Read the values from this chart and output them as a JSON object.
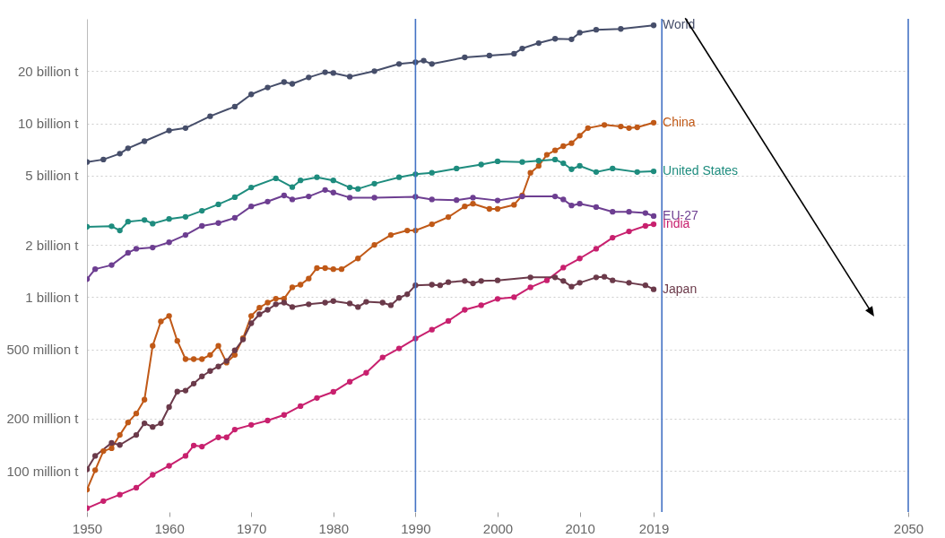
{
  "chart_data": {
    "type": "line",
    "log": "y",
    "grid": "y",
    "legend": false,
    "marker": "circle",
    "line_style": "solid",
    "xlim": [
      1950,
      2050
    ],
    "xticks": [
      1950,
      1960,
      1970,
      1980,
      1990,
      2000,
      2010,
      2019,
      2050
    ],
    "ylim": [
      58000000.0,
      40000000000.0
    ],
    "yticks": [
      {
        "value": 100000000.0,
        "label": "100 million t"
      },
      {
        "value": 200000000.0,
        "label": "200 million t"
      },
      {
        "value": 500000000.0,
        "label": "500 million t"
      },
      {
        "value": 1000000000.0,
        "label": "1 billion t"
      },
      {
        "value": 2000000000.0,
        "label": "2 billion t"
      },
      {
        "value": 5000000000.0,
        "label": "5 billion t"
      },
      {
        "value": 10000000000.0,
        "label": "10 billion t"
      },
      {
        "value": 20000000000.0,
        "label": "20 billion t"
      }
    ],
    "ref_lines": [
      {
        "axis": "x",
        "value": 1990,
        "color": "#4472c4"
      },
      {
        "axis": "x",
        "value": 2020,
        "color": "#4472c4"
      },
      {
        "axis": "x",
        "value": 2050,
        "color": "#4472c4"
      }
    ],
    "series": [
      {
        "name": "World",
        "color": "#464e6a",
        "x": [
          1950,
          1952,
          1954,
          1955,
          1957,
          1960,
          1962,
          1965,
          1968,
          1970,
          1972,
          1974,
          1975,
          1977,
          1979,
          1980,
          1982,
          1985,
          1988,
          1990,
          1991,
          1992,
          1996,
          1999,
          2002,
          2003,
          2005,
          2007,
          2009,
          2010,
          2012,
          2015,
          2019
        ],
        "values": [
          6000000000.0,
          6200000000.0,
          6700000000.0,
          7200000000.0,
          7900000000.0,
          9100000000.0,
          9400000000.0,
          11000000000.0,
          12500000000.0,
          14700000000.0,
          16100000000.0,
          17300000000.0,
          16900000000.0,
          18400000000.0,
          19700000000.0,
          19500000000.0,
          18600000000.0,
          20000000000.0,
          22000000000.0,
          22500000000.0,
          23000000000.0,
          22000000000.0,
          24000000000.0,
          24600000000.0,
          25200000000.0,
          27000000000.0,
          29000000000.0,
          30700000000.0,
          30500000000.0,
          33300000000.0,
          34600000000.0,
          35000000000.0,
          36700000000.0
        ]
      },
      {
        "name": "China",
        "color": "#c05917",
        "x": [
          1950,
          1951,
          1952,
          1953,
          1954,
          1955,
          1956,
          1957,
          1958,
          1959,
          1960,
          1961,
          1962,
          1963,
          1964,
          1965,
          1966,
          1967,
          1968,
          1969,
          1970,
          1971,
          1972,
          1973,
          1974,
          1975,
          1976,
          1977,
          1978,
          1979,
          1980,
          1981,
          1983,
          1985,
          1987,
          1989,
          1990,
          1992,
          1994,
          1996,
          1997,
          1999,
          2000,
          2002,
          2003,
          2004,
          2005,
          2006,
          2007,
          2008,
          2009,
          2010,
          2011,
          2013,
          2015,
          2016,
          2017,
          2019
        ],
        "values": [
          78000000.0,
          101000000.0,
          130000000.0,
          135000000.0,
          161000000.0,
          190000000.0,
          214000000.0,
          257000000.0,
          525000000.0,
          725000000.0,
          780000000.0,
          560000000.0,
          440000000.0,
          440000000.0,
          440000000.0,
          465000000.0,
          525000000.0,
          420000000.0,
          465000000.0,
          580000000.0,
          780000000.0,
          870000000.0,
          930000000.0,
          980000000.0,
          980000000.0,
          1140000000.0,
          1180000000.0,
          1280000000.0,
          1470000000.0,
          1470000000.0,
          1450000000.0,
          1450000000.0,
          1670000000.0,
          2000000000.0,
          2280000000.0,
          2420000000.0,
          2420000000.0,
          2630000000.0,
          2890000000.0,
          3330000000.0,
          3450000000.0,
          3220000000.0,
          3220000000.0,
          3400000000.0,
          3850000000.0,
          5200000000.0,
          5700000000.0,
          6600000000.0,
          7000000000.0,
          7400000000.0,
          7700000000.0,
          8500000000.0,
          9400000000.0,
          9800000000.0,
          9600000000.0,
          9400000000.0,
          9500000000.0,
          10100000000.0
        ]
      },
      {
        "name": "United States",
        "color": "#1e8c7e",
        "x": [
          1950,
          1953,
          1954,
          1955,
          1957,
          1958,
          1960,
          1962,
          1964,
          1966,
          1968,
          1970,
          1973,
          1975,
          1976,
          1978,
          1980,
          1982,
          1983,
          1985,
          1988,
          1990,
          1992,
          1995,
          1998,
          2000,
          2003,
          2005,
          2007,
          2008,
          2009,
          2010,
          2012,
          2014,
          2017,
          2019
        ],
        "values": [
          2540000000.0,
          2560000000.0,
          2420000000.0,
          2720000000.0,
          2780000000.0,
          2650000000.0,
          2820000000.0,
          2900000000.0,
          3140000000.0,
          3420000000.0,
          3760000000.0,
          4280000000.0,
          4830000000.0,
          4300000000.0,
          4700000000.0,
          4900000000.0,
          4700000000.0,
          4280000000.0,
          4200000000.0,
          4500000000.0,
          4900000000.0,
          5100000000.0,
          5200000000.0,
          5500000000.0,
          5800000000.0,
          6050000000.0,
          6000000000.0,
          6100000000.0,
          6200000000.0,
          5900000000.0,
          5450000000.0,
          5700000000.0,
          5250000000.0,
          5500000000.0,
          5250000000.0,
          5300000000.0
        ]
      },
      {
        "name": "EU-27",
        "color": "#6d3e91",
        "x": [
          1950,
          1951,
          1953,
          1955,
          1956,
          1958,
          1960,
          1962,
          1964,
          1966,
          1968,
          1970,
          1972,
          1974,
          1975,
          1977,
          1979,
          1980,
          1982,
          1985,
          1990,
          1992,
          1995,
          1997,
          2000,
          2003,
          2007,
          2008,
          2009,
          2010,
          2012,
          2014,
          2016,
          2018,
          2019
        ],
        "values": [
          1270000000.0,
          1450000000.0,
          1530000000.0,
          1800000000.0,
          1900000000.0,
          1930000000.0,
          2070000000.0,
          2280000000.0,
          2570000000.0,
          2670000000.0,
          2860000000.0,
          3330000000.0,
          3550000000.0,
          3850000000.0,
          3650000000.0,
          3800000000.0,
          4140000000.0,
          4000000000.0,
          3740000000.0,
          3740000000.0,
          3780000000.0,
          3650000000.0,
          3620000000.0,
          3740000000.0,
          3600000000.0,
          3800000000.0,
          3800000000.0,
          3650000000.0,
          3370000000.0,
          3450000000.0,
          3300000000.0,
          3100000000.0,
          3100000000.0,
          3050000000.0,
          2930000000.0
        ]
      },
      {
        "name": "India",
        "color": "#c8206e",
        "x": [
          1950,
          1952,
          1954,
          1956,
          1958,
          1960,
          1962,
          1963,
          1964,
          1966,
          1967,
          1968,
          1970,
          1972,
          1974,
          1976,
          1978,
          1980,
          1982,
          1984,
          1986,
          1988,
          1990,
          1992,
          1994,
          1996,
          1998,
          2000,
          2002,
          2004,
          2006,
          2008,
          2010,
          2012,
          2014,
          2016,
          2018,
          2019
        ],
        "values": [
          61000000.0,
          67000000.0,
          73000000.0,
          80000000.0,
          95000000.0,
          107000000.0,
          122000000.0,
          140000000.0,
          138000000.0,
          156000000.0,
          156000000.0,
          173000000.0,
          184000000.0,
          195000000.0,
          210000000.0,
          236000000.0,
          263000000.0,
          285000000.0,
          326000000.0,
          367000000.0,
          450000000.0,
          507000000.0,
          578000000.0,
          650000000.0,
          730000000.0,
          846000000.0,
          898000000.0,
          977000000.0,
          1000000000.0,
          1140000000.0,
          1250000000.0,
          1480000000.0,
          1670000000.0,
          1900000000.0,
          2200000000.0,
          2390000000.0,
          2570000000.0,
          2630000000.0
        ]
      },
      {
        "name": "Japan",
        "color": "#6b3a4a",
        "x": [
          1950,
          1951,
          1953,
          1954,
          1956,
          1957,
          1958,
          1959,
          1960,
          1961,
          1962,
          1963,
          1964,
          1965,
          1966,
          1967,
          1968,
          1969,
          1970,
          1971,
          1972,
          1973,
          1974,
          1975,
          1977,
          1979,
          1980,
          1982,
          1983,
          1984,
          1986,
          1987,
          1988,
          1989,
          1990,
          1992,
          1993,
          1994,
          1996,
          1997,
          1998,
          2000,
          2004,
          2007,
          2008,
          2009,
          2010,
          2012,
          2013,
          2014,
          2016,
          2018,
          2019
        ],
        "values": [
          102000000.0,
          122000000.0,
          145000000.0,
          141000000.0,
          161000000.0,
          188000000.0,
          179000000.0,
          188000000.0,
          233000000.0,
          286000000.0,
          290000000.0,
          318000000.0,
          350000000.0,
          376000000.0,
          399000000.0,
          429000000.0,
          494000000.0,
          571000000.0,
          708000000.0,
          797000000.0,
          846000000.0,
          910000000.0,
          930000000.0,
          877000000.0,
          910000000.0,
          930000000.0,
          950000000.0,
          920000000.0,
          877000000.0,
          940000000.0,
          930000000.0,
          898000000.0,
          990000000.0,
          1040000000.0,
          1170000000.0,
          1180000000.0,
          1170000000.0,
          1220000000.0,
          1240000000.0,
          1200000000.0,
          1240000000.0,
          1250000000.0,
          1300000000.0,
          1300000000.0,
          1240000000.0,
          1150000000.0,
          1210000000.0,
          1300000000.0,
          1310000000.0,
          1250000000.0,
          1210000000.0,
          1170000000.0,
          1110000000.0
        ]
      }
    ]
  }
}
